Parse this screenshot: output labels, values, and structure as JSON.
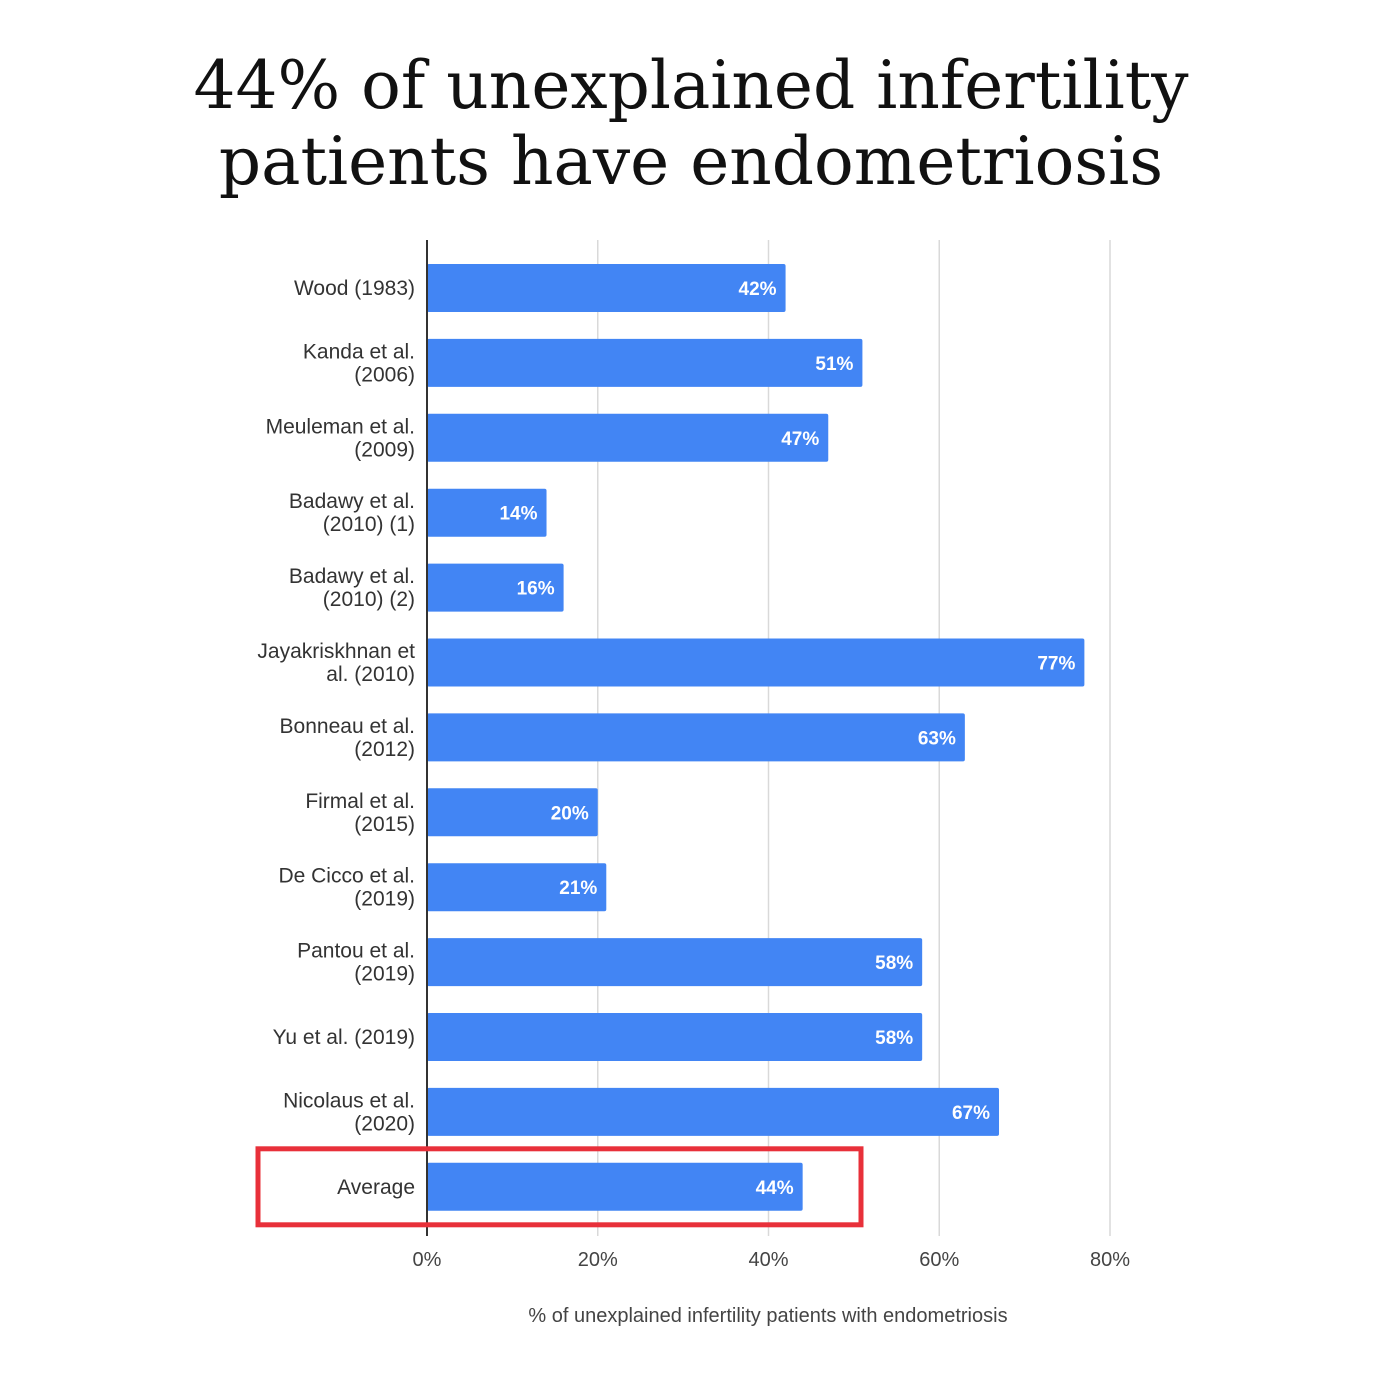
{
  "title": {
    "line1": "44% of unexplained infertility",
    "line2": "patients have endometriosis"
  },
  "colors": {
    "bar": "#4285F4",
    "grid": "#d9d9d9",
    "axis": "#333333",
    "highlight": "#e8303a"
  },
  "chart_data": {
    "type": "bar",
    "orientation": "horizontal",
    "categories": [
      [
        "Wood (1983)"
      ],
      [
        "Kanda et al.",
        "(2006)"
      ],
      [
        "Meuleman et al.",
        "(2009)"
      ],
      [
        "Badawy et al.",
        "(2010) (1)"
      ],
      [
        "Badawy et al.",
        "(2010) (2)"
      ],
      [
        "Jayakriskhnan et",
        "al. (2010)"
      ],
      [
        "Bonneau et al.",
        "(2012)"
      ],
      [
        "Firmal et al.",
        "(2015)"
      ],
      [
        "De Cicco et al.",
        "(2019)"
      ],
      [
        "Pantou et al.",
        "(2019)"
      ],
      [
        "Yu et al. (2019)"
      ],
      [
        "Nicolaus et al.",
        "(2020)"
      ],
      [
        "Average"
      ]
    ],
    "values": [
      42,
      51,
      47,
      14,
      16,
      77,
      63,
      20,
      21,
      58,
      58,
      67,
      44
    ],
    "data_labels": [
      "42%",
      "51%",
      "47%",
      "14%",
      "16%",
      "77%",
      "63%",
      "20%",
      "21%",
      "58%",
      "58%",
      "67%",
      "44%"
    ],
    "xlabel": "% of unexplained infertility patients with endometriosis",
    "xlim": [
      0,
      80
    ],
    "xticks": [
      0,
      20,
      40,
      60,
      80
    ],
    "xtick_labels": [
      "0%",
      "20%",
      "40%",
      "60%",
      "80%"
    ],
    "grid": true,
    "highlighted_category": "Average"
  }
}
